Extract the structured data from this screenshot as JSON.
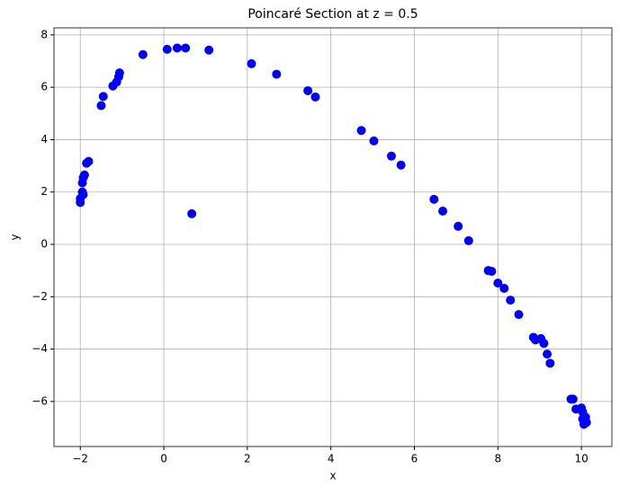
{
  "chart_data": {
    "type": "scatter",
    "title": "Poincaré Section at z = 0.5",
    "xlabel": "x",
    "ylabel": "y",
    "color": "blue",
    "grid": true,
    "x": [
      -2.0,
      -2.0,
      -1.95,
      -1.95,
      -1.93,
      -1.9,
      -1.93,
      -1.85,
      -1.8,
      -1.5,
      -1.45,
      -1.22,
      -1.13,
      -1.08,
      -1.06,
      -0.5,
      0.08,
      0.32,
      0.52,
      1.08,
      0.67,
      2.1,
      2.7,
      3.45,
      3.63,
      4.73,
      5.03,
      5.45,
      5.68,
      6.47,
      6.68,
      7.05,
      7.3,
      7.77,
      7.85,
      8.0,
      8.15,
      8.3,
      8.5,
      8.85,
      8.9,
      9.03,
      9.1,
      9.18,
      9.25,
      9.75,
      9.8,
      9.87,
      10.0,
      10.03,
      10.1,
      10.03,
      10.12,
      10.06
    ],
    "values": [
      1.75,
      1.6,
      2.0,
      2.35,
      2.55,
      2.65,
      1.9,
      3.1,
      3.17,
      5.3,
      5.65,
      6.05,
      6.2,
      6.4,
      6.55,
      7.25,
      7.45,
      7.5,
      7.5,
      7.42,
      1.17,
      6.9,
      6.5,
      5.87,
      5.63,
      4.35,
      3.95,
      3.37,
      3.03,
      1.72,
      1.27,
      0.69,
      0.14,
      -1.0,
      -1.03,
      -1.48,
      -1.68,
      -2.13,
      -2.68,
      -3.55,
      -3.65,
      -3.6,
      -3.78,
      -4.19,
      -4.54,
      -5.91,
      -5.91,
      -6.29,
      -6.25,
      -6.4,
      -6.6,
      -6.67,
      -6.8,
      -6.87
    ],
    "xlim": [
      -2.63,
      10.73
    ],
    "ylim": [
      -7.72,
      8.27
    ],
    "xticks": [
      {
        "value": -2,
        "label": "−2"
      },
      0,
      2,
      4,
      6,
      8,
      10
    ],
    "yticks": [
      {
        "value": -6,
        "label": "−6"
      },
      {
        "value": -4,
        "label": "−4"
      },
      {
        "value": -2,
        "label": "−2"
      },
      0,
      2,
      4,
      6,
      8
    ]
  }
}
